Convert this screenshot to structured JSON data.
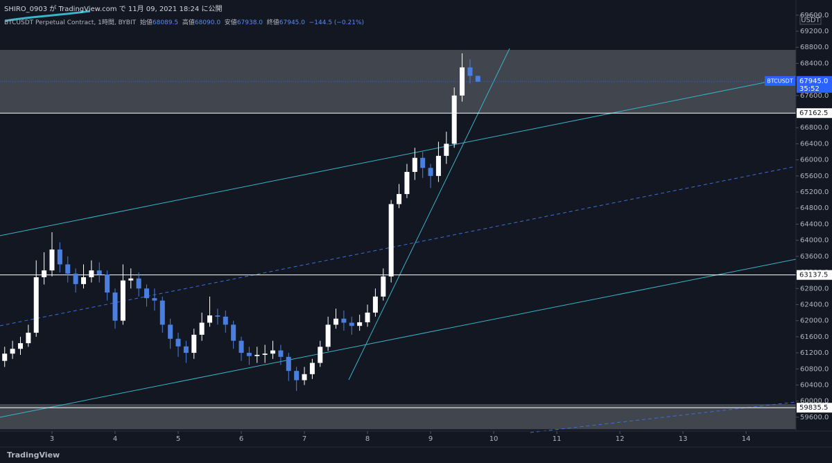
{
  "header": {
    "published": "SHIRO_0903 が TradingView.com で 11月 09, 2021 18:24 に公開"
  },
  "chart_data": {
    "type": "candlestick",
    "legend": {
      "symbol": "BTCUSDT Perpetual Contract, 1時間, BYBIT",
      "open_label": "始値",
      "open": 68089.5,
      "high_label": "高値",
      "high": {
        "value": 68090,
        "label": "68090.0"
      },
      "low_label": "安値",
      "low": {
        "value": 67938,
        "label": "67938.0"
      },
      "close_label": "終値",
      "close": {
        "value": 67945,
        "label": "67945.0"
      },
      "change": "−144.5 (−0.21%)"
    },
    "currency": "USDT",
    "x": [
      2.25,
      2.375,
      2.5,
      2.625,
      2.75,
      2.875,
      3,
      3.125,
      3.25,
      3.375,
      3.5,
      3.625,
      3.75,
      3.875,
      4,
      4.125,
      4.25,
      4.375,
      4.5,
      4.625,
      4.75,
      4.875,
      5,
      5.125,
      5.25,
      5.375,
      5.5,
      5.625,
      5.75,
      5.875,
      6,
      6.125,
      6.25,
      6.375,
      6.5,
      6.625,
      6.75,
      6.875,
      7,
      7.125,
      7.25,
      7.375,
      7.5,
      7.625,
      7.75,
      7.875,
      8,
      8.125,
      8.25,
      8.375,
      8.5,
      8.625,
      8.75,
      8.875,
      9,
      9.125,
      9.25,
      9.375,
      9.5,
      9.625,
      9.75
    ],
    "open": [
      61000,
      61180,
      61300,
      61440,
      61700,
      63080,
      63250,
      63770,
      63400,
      63170,
      62910,
      63080,
      63250,
      63150,
      62700,
      62000,
      63000,
      63050,
      62800,
      62560,
      62500,
      61900,
      61550,
      61360,
      61200,
      61650,
      61950,
      62130,
      62100,
      61900,
      61500,
      61200,
      61120,
      61150,
      61180,
      61260,
      61100,
      60750,
      60520,
      60670,
      60950,
      61350,
      61900,
      62050,
      61950,
      61870,
      61960,
      62200,
      62600,
      63100,
      64900,
      65150,
      65700,
      66050,
      65800,
      65600,
      66100,
      66400,
      67600,
      68300,
      68089.5
    ],
    "high": [
      61350,
      61500,
      61600,
      61900,
      63500,
      63700,
      64200,
      63950,
      63600,
      63300,
      63400,
      63500,
      63450,
      63250,
      62800,
      63400,
      63300,
      63200,
      62900,
      62800,
      62600,
      62050,
      61700,
      61500,
      61800,
      62200,
      62600,
      62300,
      62250,
      62000,
      61600,
      61350,
      61350,
      61400,
      61500,
      61400,
      61200,
      60850,
      60850,
      61050,
      61500,
      62100,
      62300,
      62250,
      62100,
      62150,
      62400,
      62800,
      63300,
      65000,
      65400,
      65900,
      66300,
      66200,
      65900,
      66450,
      66700,
      67800,
      68650,
      68500,
      68090
    ],
    "low": [
      60850,
      61050,
      61150,
      61350,
      61600,
      62900,
      63100,
      63200,
      62950,
      62700,
      62800,
      62950,
      62950,
      62500,
      61800,
      61900,
      62800,
      62600,
      62350,
      62250,
      61700,
      61300,
      61100,
      60950,
      61050,
      61500,
      61850,
      61900,
      61700,
      61300,
      61000,
      60900,
      60950,
      60950,
      61050,
      60900,
      60500,
      60250,
      60400,
      60550,
      60850,
      61250,
      61800,
      61750,
      61650,
      61750,
      61850,
      62100,
      62500,
      62950,
      64800,
      65050,
      65500,
      65550,
      65300,
      65450,
      65900,
      66300,
      67450,
      67900,
      67938
    ],
    "close": [
      61180,
      61300,
      61440,
      61700,
      63080,
      63250,
      63770,
      63400,
      63170,
      62910,
      63080,
      63250,
      63150,
      62700,
      62000,
      63000,
      63050,
      62800,
      62560,
      62500,
      61900,
      61550,
      61360,
      61200,
      61650,
      61950,
      62130,
      62100,
      61900,
      61500,
      61200,
      61120,
      61150,
      61180,
      61260,
      61100,
      60750,
      60520,
      60670,
      60950,
      61350,
      61900,
      62050,
      61950,
      61870,
      61960,
      62200,
      62600,
      63100,
      64900,
      65150,
      65700,
      66050,
      65800,
      65600,
      66100,
      66400,
      67600,
      68300,
      68089.5,
      67945
    ],
    "up_color": "#ffffff",
    "down_color": "#4a7fe0",
    "xlim": [
      2.176,
      14.79
    ],
    "xticks": [
      3,
      4,
      5,
      6,
      7,
      8,
      9,
      10,
      11,
      12,
      13,
      14
    ],
    "ylim": [
      59253,
      69976
    ],
    "yticks": [
      {
        "value": 59600,
        "label": "59600.0"
      },
      {
        "value": 60000,
        "label": "60000.0"
      },
      {
        "value": 60400,
        "label": "60400.0"
      },
      {
        "value": 60800,
        "label": "60800.0"
      },
      {
        "value": 61200,
        "label": "61200.0"
      },
      {
        "value": 61600,
        "label": "61600.0"
      },
      {
        "value": 62000,
        "label": "62000.0"
      },
      {
        "value": 62400,
        "label": "62400.0"
      },
      {
        "value": 62800,
        "label": "62800.0"
      },
      {
        "value": 63200,
        "label": "63200.0"
      },
      {
        "value": 63600,
        "label": "63600.0"
      },
      {
        "value": 64000,
        "label": "64000.0"
      },
      {
        "value": 64400,
        "label": "64400.0"
      },
      {
        "value": 64800,
        "label": "64800.0"
      },
      {
        "value": 65200,
        "label": "65200.0"
      },
      {
        "value": 65600,
        "label": "65600.0"
      },
      {
        "value": 66000,
        "label": "66000.0"
      },
      {
        "value": 66400,
        "label": "66400.0"
      },
      {
        "value": 66800,
        "label": "66800.0"
      },
      {
        "value": 67200,
        "label": "67200.0"
      },
      {
        "value": 67600,
        "label": "67600.0"
      },
      {
        "value": 68000,
        "label": "68000.0"
      },
      {
        "value": 68400,
        "label": "68400.0"
      },
      {
        "value": 68800,
        "label": "68800.0"
      },
      {
        "value": 69200,
        "label": "69200.0"
      },
      {
        "value": 69600,
        "label": "69600.0"
      }
    ],
    "zones": [
      [
        67162.5,
        68735
      ],
      [
        59300,
        59925
      ]
    ],
    "zone_color": "#4a4d55",
    "levels": [
      {
        "value": 67162.5,
        "label": "67162.5"
      },
      {
        "value": 63137.5,
        "label": "63137.5"
      },
      {
        "value": 59835.5,
        "label": "59835.5"
      }
    ],
    "last": {
      "value": 67945,
      "label": "67945.0",
      "countdown": "35:52",
      "symbol": "BTCUSDT",
      "color": "#2962ff"
    }
  },
  "footer": {
    "brand": "TradingView"
  }
}
